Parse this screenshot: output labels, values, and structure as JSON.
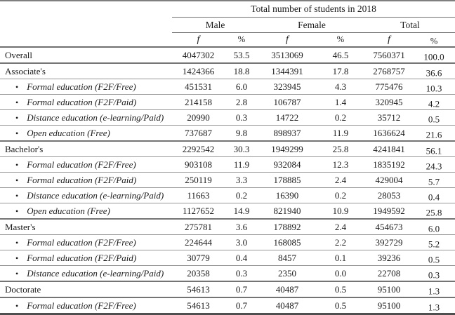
{
  "table": {
    "title": "Total number of students in 2018",
    "group_headers": [
      "Male",
      "Female",
      "Total"
    ],
    "sub_headers": [
      "f",
      "%",
      "f",
      "%",
      "f",
      "%"
    ],
    "rows": [
      {
        "label": "Overall",
        "type": "category",
        "values": [
          "4047302",
          "53.5",
          "3513069",
          "46.5",
          "7560371",
          "100.0"
        ]
      },
      {
        "label": "Associate's",
        "type": "category",
        "values": [
          "1424366",
          "18.8",
          "1344391",
          "17.8",
          "2768757",
          "36.6"
        ]
      },
      {
        "label": "Formal education (F2F/Free)",
        "type": "item",
        "values": [
          "451531",
          "6.0",
          "323945",
          "4.3",
          "775476",
          "10.3"
        ]
      },
      {
        "label": "Formal education (F2F/Paid)",
        "type": "item",
        "values": [
          "214158",
          "2.8",
          "106787",
          "1.4",
          "320945",
          "4.2"
        ]
      },
      {
        "label": "Distance education (e-learning/Paid)",
        "type": "item",
        "values": [
          "20990",
          "0.3",
          "14722",
          "0.2",
          "35712",
          "0.5"
        ]
      },
      {
        "label": "Open education (Free)",
        "type": "item",
        "values": [
          "737687",
          "9.8",
          "898937",
          "11.9",
          "1636624",
          "21.6"
        ]
      },
      {
        "label": "Bachelor's",
        "type": "category",
        "values": [
          "2292542",
          "30.3",
          "1949299",
          "25.8",
          "4241841",
          "56.1"
        ]
      },
      {
        "label": "Formal education (F2F/Free)",
        "type": "item",
        "values": [
          "903108",
          "11.9",
          "932084",
          "12.3",
          "1835192",
          "24.3"
        ]
      },
      {
        "label": "Formal education (F2F/Paid)",
        "type": "item",
        "values": [
          "250119",
          "3.3",
          "178885",
          "2.4",
          "429004",
          "5.7"
        ]
      },
      {
        "label": "Distance education (e-learning/Paid)",
        "type": "item",
        "values": [
          "11663",
          "0.2",
          "16390",
          "0.2",
          "28053",
          "0.4"
        ]
      },
      {
        "label": "Open education (Free)",
        "type": "item",
        "values": [
          "1127652",
          "14.9",
          "821940",
          "10.9",
          "1949592",
          "25.8"
        ]
      },
      {
        "label": "Master's",
        "type": "category",
        "values": [
          "275781",
          "3.6",
          "178892",
          "2.4",
          "454673",
          "6.0"
        ]
      },
      {
        "label": "Formal education (F2F/Free)",
        "type": "item",
        "values": [
          "224644",
          "3.0",
          "168085",
          "2.2",
          "392729",
          "5.2"
        ]
      },
      {
        "label": "Formal education (F2F/Paid)",
        "type": "item",
        "values": [
          "30779",
          "0.4",
          "8457",
          "0.1",
          "39236",
          "0.5"
        ]
      },
      {
        "label": "Distance education (e-learning/Paid)",
        "type": "item",
        "values": [
          "20358",
          "0.3",
          "2350",
          "0.0",
          "22708",
          "0.3"
        ]
      },
      {
        "label": "Doctorate",
        "type": "category",
        "values": [
          "54613",
          "0.7",
          "40487",
          "0.5",
          "95100",
          "1.3"
        ]
      },
      {
        "label": "Formal education (F2F/Free)",
        "type": "item",
        "values": [
          "54613",
          "0.7",
          "40487",
          "0.5",
          "95100",
          "1.3"
        ]
      }
    ]
  }
}
